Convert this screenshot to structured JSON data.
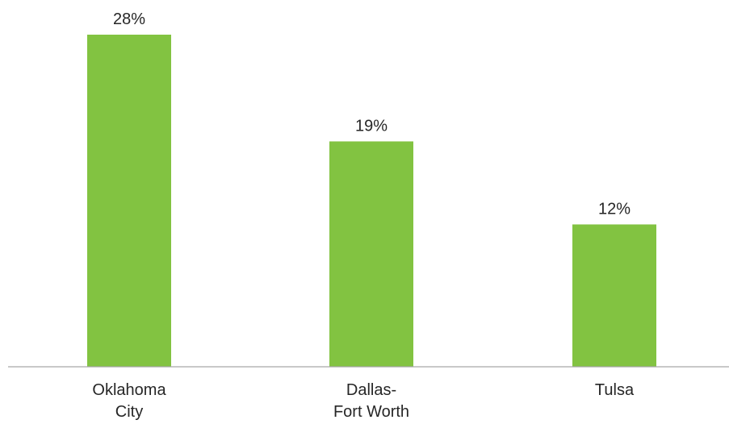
{
  "chart_data": {
    "type": "bar",
    "title": "",
    "xlabel": "",
    "ylabel": "",
    "categories": [
      [
        "Oklahoma",
        "City"
      ],
      [
        "Dallas-",
        "Fort Worth"
      ],
      [
        "Tulsa"
      ]
    ],
    "values": [
      28,
      19,
      12
    ],
    "data_labels": [
      "28%",
      "19%",
      "12%"
    ],
    "ylim": [
      0,
      28
    ],
    "grid": false,
    "legend": "none",
    "bar_color": "#82C341",
    "axis_color": "#A6A6A6",
    "text_color": "#262626"
  }
}
